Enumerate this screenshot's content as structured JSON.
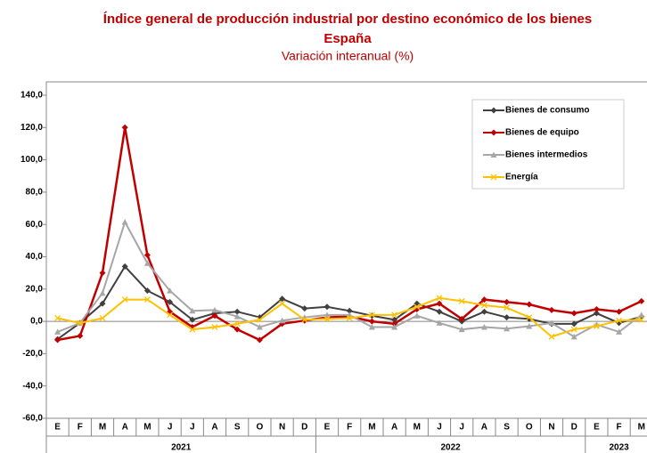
{
  "chart_data": {
    "type": "line",
    "title": "Índice general de producción industrial por destino económico de los bienes",
    "title_line2": "España",
    "subtitle": "Variación interanual (%)",
    "categories": [
      "E",
      "F",
      "M",
      "A",
      "M",
      "J",
      "J",
      "A",
      "S",
      "O",
      "N",
      "D",
      "E",
      "F",
      "M",
      "A",
      "M",
      "J",
      "J",
      "A",
      "S",
      "O",
      "N",
      "D",
      "E",
      "F",
      "M"
    ],
    "x_groups": [
      {
        "label": "2021",
        "count": 12
      },
      {
        "label": "2022",
        "count": 12
      },
      {
        "label": "2023",
        "count": 3
      }
    ],
    "ylim": [
      -60,
      140
    ],
    "yticks": [
      {
        "value": -60,
        "label": "-60,0"
      },
      {
        "value": -40,
        "label": "-40,0"
      },
      {
        "value": -20,
        "label": "-20,0"
      },
      {
        "value": 0,
        "label": "0,0"
      },
      {
        "value": 20,
        "label": "20,0"
      },
      {
        "value": 40,
        "label": "40,0"
      },
      {
        "value": 60,
        "label": "60,0"
      },
      {
        "value": 80,
        "label": "80,0"
      },
      {
        "value": 100,
        "label": "100,0"
      },
      {
        "value": 120,
        "label": "120,0"
      },
      {
        "value": 140,
        "label": "140,0"
      }
    ],
    "legend": "upper right",
    "series": [
      {
        "name": "Bienes de consumo",
        "color": "#404040",
        "marker": "diamond",
        "values": [
          -11,
          -1,
          11,
          34,
          19,
          12,
          1,
          5,
          6,
          2.5,
          14,
          8,
          9,
          6.5,
          3.5,
          1,
          11,
          6,
          0,
          6,
          2.5,
          1.5,
          -1.5,
          -1.5,
          5,
          -1,
          3
        ]
      },
      {
        "name": "Bienes de equipo",
        "color": "#c00000",
        "marker": "diamond",
        "values": [
          -11.5,
          -9,
          30,
          120,
          41,
          6,
          -3.5,
          3.5,
          -5,
          -11.5,
          -1.5,
          0.5,
          2.5,
          3,
          0,
          -1.5,
          7.5,
          11,
          1.5,
          13.5,
          12,
          10.5,
          7,
          5,
          7.5,
          6,
          12.5
        ]
      },
      {
        "name": "Bienes intermedios",
        "color": "#a6a6a6",
        "marker": "triangle",
        "values": [
          -6.5,
          -1,
          17.5,
          61.5,
          36,
          19,
          6.5,
          7,
          3,
          -3.5,
          0.5,
          2.5,
          4,
          4,
          -3.5,
          -3.5,
          3.5,
          -1,
          -5,
          -3.5,
          -4.5,
          -3,
          -1,
          -9.5,
          -2,
          -6.5,
          4
        ]
      },
      {
        "name": "Energía",
        "color": "#ffc000",
        "marker": "x",
        "values": [
          2,
          -1,
          2,
          13.5,
          13.5,
          4,
          -5,
          -3.5,
          -1.5,
          1,
          11,
          1,
          1.5,
          2,
          4,
          4,
          9,
          14.5,
          12.5,
          10,
          8.5,
          2.5,
          -9.5,
          -5,
          -3,
          0.5,
          1
        ]
      }
    ]
  }
}
